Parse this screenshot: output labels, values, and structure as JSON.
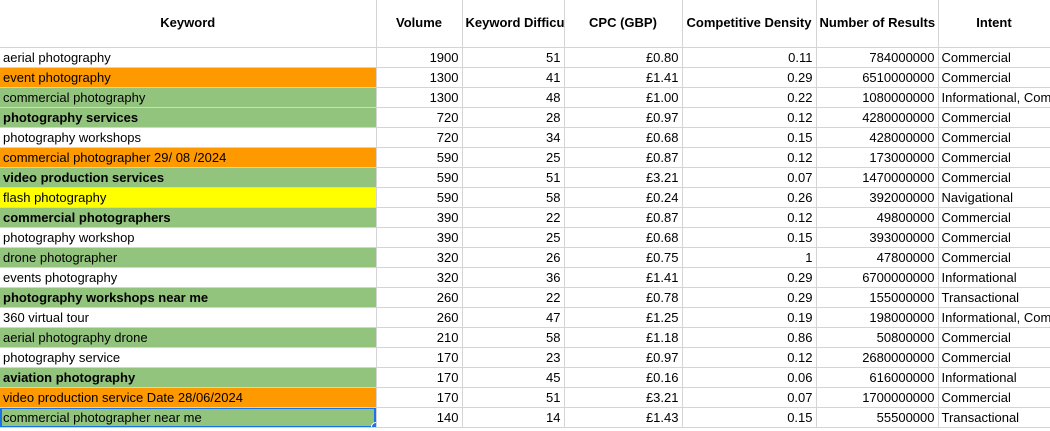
{
  "columns": [
    "Keyword",
    "Volume",
    "Keyword Difficulty",
    "CPC (GBP)",
    "Competitive Density",
    "Number of Results",
    "Intent"
  ],
  "colors": {
    "orange": "#ff9900",
    "green": "#93c47d",
    "yellow": "#ffff00",
    "white": "#ffffff",
    "selection": "#1a73e8"
  },
  "selected_row": 18,
  "rows": [
    {
      "keyword": "aerial photography",
      "volume": "1900",
      "difficulty": "51",
      "cpc": "£0.80",
      "density": "0.11",
      "results": "784000000",
      "intent": "Commercial",
      "fill": "white",
      "bold": false
    },
    {
      "keyword": "event photography",
      "volume": "1300",
      "difficulty": "41",
      "cpc": "£1.41",
      "density": "0.29",
      "results": "6510000000",
      "intent": "Commercial",
      "fill": "orange",
      "bold": false
    },
    {
      "keyword": "commercial photography",
      "volume": "1300",
      "difficulty": "48",
      "cpc": "£1.00",
      "density": "0.22",
      "results": "1080000000",
      "intent": "Informational, Com",
      "fill": "green",
      "bold": false
    },
    {
      "keyword": "photography services",
      "volume": "720",
      "difficulty": "28",
      "cpc": "£0.97",
      "density": "0.12",
      "results": "4280000000",
      "intent": "Commercial",
      "fill": "green",
      "bold": true
    },
    {
      "keyword": "photography workshops",
      "volume": "720",
      "difficulty": "34",
      "cpc": "£0.68",
      "density": "0.15",
      "results": "428000000",
      "intent": "Commercial",
      "fill": "white",
      "bold": false
    },
    {
      "keyword": "commercial photographer 29/ 08 /2024",
      "volume": "590",
      "difficulty": "25",
      "cpc": "£0.87",
      "density": "0.12",
      "results": "173000000",
      "intent": "Commercial",
      "fill": "orange",
      "bold": false
    },
    {
      "keyword": "video production services",
      "volume": "590",
      "difficulty": "51",
      "cpc": "£3.21",
      "density": "0.07",
      "results": "1470000000",
      "intent": "Commercial",
      "fill": "green",
      "bold": true
    },
    {
      "keyword": "flash photography",
      "volume": "590",
      "difficulty": "58",
      "cpc": "£0.24",
      "density": "0.26",
      "results": "392000000",
      "intent": "Navigational",
      "fill": "yellow",
      "bold": false
    },
    {
      "keyword": "commercial photographers",
      "volume": "390",
      "difficulty": "22",
      "cpc": "£0.87",
      "density": "0.12",
      "results": "49800000",
      "intent": "Commercial",
      "fill": "green",
      "bold": true
    },
    {
      "keyword": "photography workshop",
      "volume": "390",
      "difficulty": "25",
      "cpc": "£0.68",
      "density": "0.15",
      "results": "393000000",
      "intent": "Commercial",
      "fill": "white",
      "bold": false
    },
    {
      "keyword": "drone photographer",
      "volume": "320",
      "difficulty": "26",
      "cpc": "£0.75",
      "density": "1",
      "results": "47800000",
      "intent": "Commercial",
      "fill": "green",
      "bold": false
    },
    {
      "keyword": "events photography",
      "volume": "320",
      "difficulty": "36",
      "cpc": "£1.41",
      "density": "0.29",
      "results": "6700000000",
      "intent": "Informational",
      "fill": "white",
      "bold": false
    },
    {
      "keyword": "photography workshops near me",
      "volume": "260",
      "difficulty": "22",
      "cpc": "£0.78",
      "density": "0.29",
      "results": "155000000",
      "intent": "Transactional",
      "fill": "green",
      "bold": true
    },
    {
      "keyword": "360 virtual tour",
      "volume": "260",
      "difficulty": "47",
      "cpc": "£1.25",
      "density": "0.19",
      "results": "198000000",
      "intent": "Informational, Com",
      "fill": "white",
      "bold": false
    },
    {
      "keyword": "aerial photography drone",
      "volume": "210",
      "difficulty": "58",
      "cpc": "£1.18",
      "density": "0.86",
      "results": "50800000",
      "intent": "Commercial",
      "fill": "green",
      "bold": false
    },
    {
      "keyword": "photography service",
      "volume": "170",
      "difficulty": "23",
      "cpc": "£0.97",
      "density": "0.12",
      "results": "2680000000",
      "intent": "Commercial",
      "fill": "white",
      "bold": false
    },
    {
      "keyword": "aviation photography",
      "volume": "170",
      "difficulty": "45",
      "cpc": "£0.16",
      "density": "0.06",
      "results": "616000000",
      "intent": "Informational",
      "fill": "green",
      "bold": true
    },
    {
      "keyword": "video production service   Date 28/06/2024",
      "volume": "170",
      "difficulty": "51",
      "cpc": "£3.21",
      "density": "0.07",
      "results": "1700000000",
      "intent": "Commercial",
      "fill": "orange",
      "bold": false
    },
    {
      "keyword": "commercial photographer near me",
      "volume": "140",
      "difficulty": "14",
      "cpc": "£1.43",
      "density": "0.15",
      "results": "55500000",
      "intent": "Transactional",
      "fill": "green",
      "bold": false
    }
  ]
}
